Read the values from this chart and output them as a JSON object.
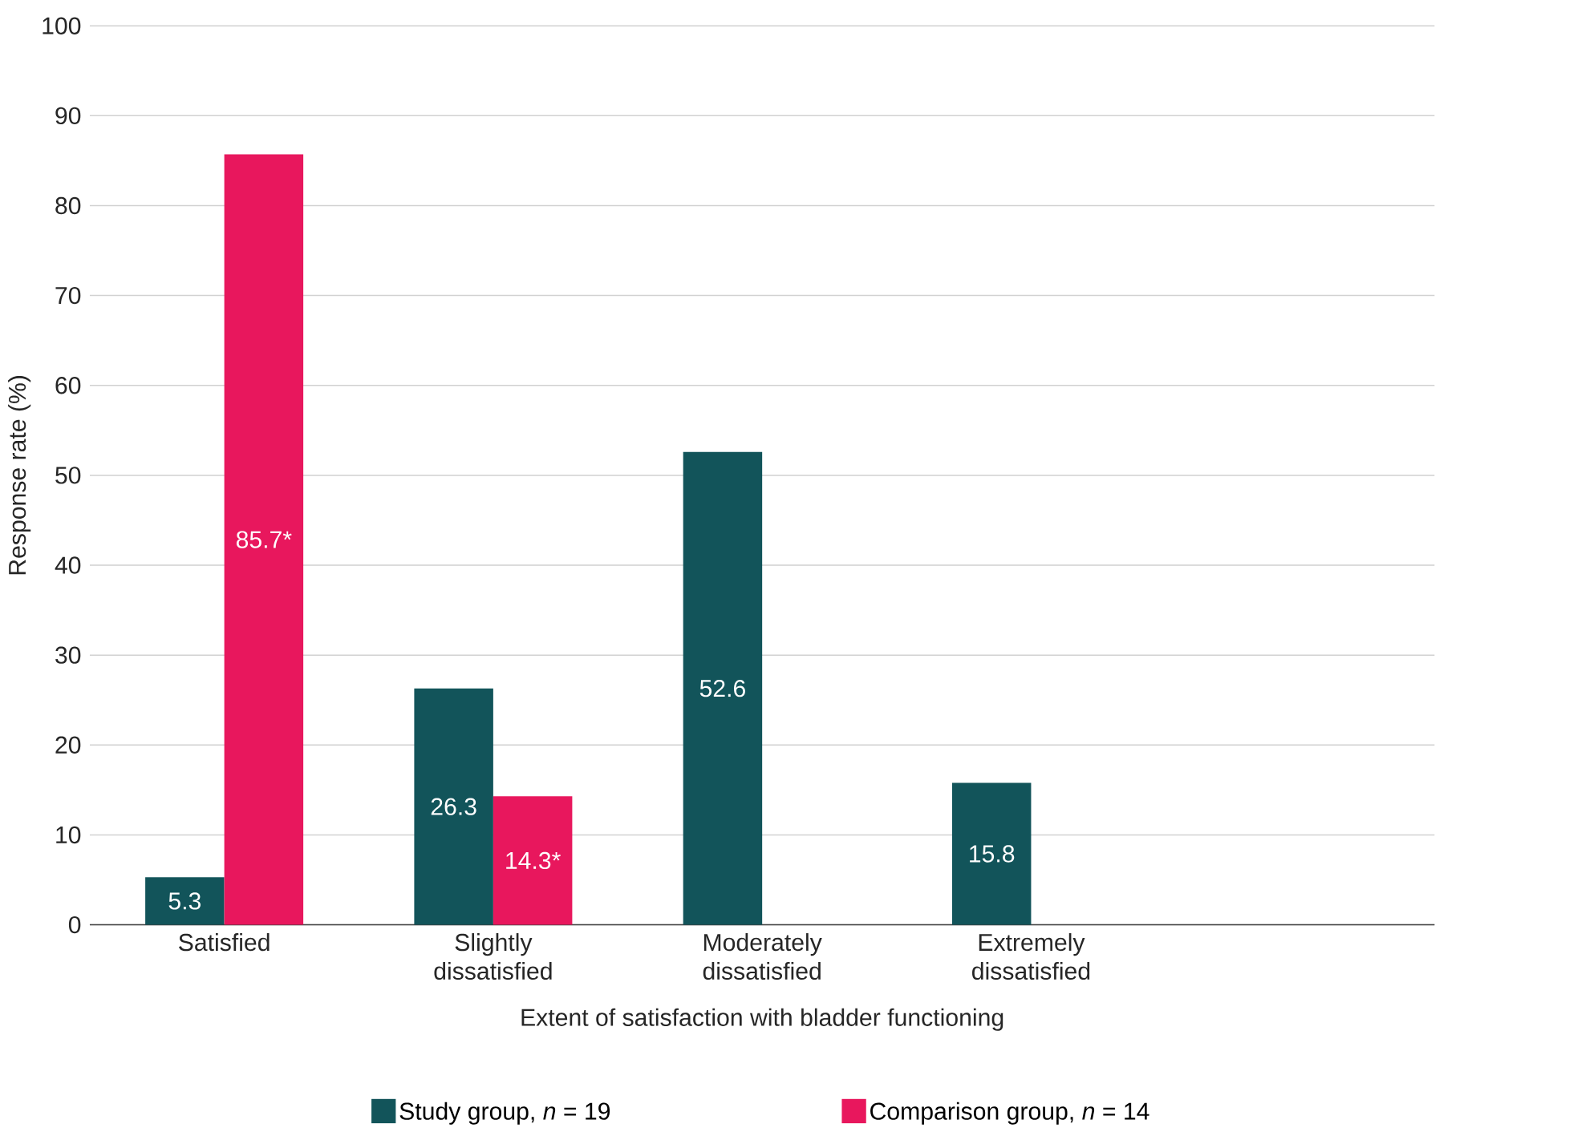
{
  "chart_data": {
    "type": "bar",
    "categories": [
      "Satisfied",
      "Slightly dissatisfied",
      "Moderately dissatisfied",
      "Extremely dissatisfied",
      null
    ],
    "series": [
      {
        "name": "Study group, *n* = 19",
        "color": "#12545a",
        "values": [
          5.3,
          26.3,
          52.6,
          15.8,
          null
        ],
        "value_labels": [
          "5.3",
          "26.3",
          "52.6",
          "15.8",
          null
        ]
      },
      {
        "name": "Comparison group, *n* = 14",
        "color": "#e8175d",
        "values": [
          85.7,
          14.3,
          null,
          null,
          null
        ],
        "value_labels": [
          "85.7*",
          "14.3*",
          null,
          null,
          null
        ]
      }
    ],
    "xlabel": "Extent of satisfaction with bladder functioning",
    "ylabel": "Response rate (%)",
    "ylim": [
      0,
      100
    ],
    "yticks": [
      0,
      10,
      20,
      30,
      40,
      50,
      60,
      70,
      80,
      90,
      100
    ],
    "grid": "y",
    "legend": "bottom"
  }
}
